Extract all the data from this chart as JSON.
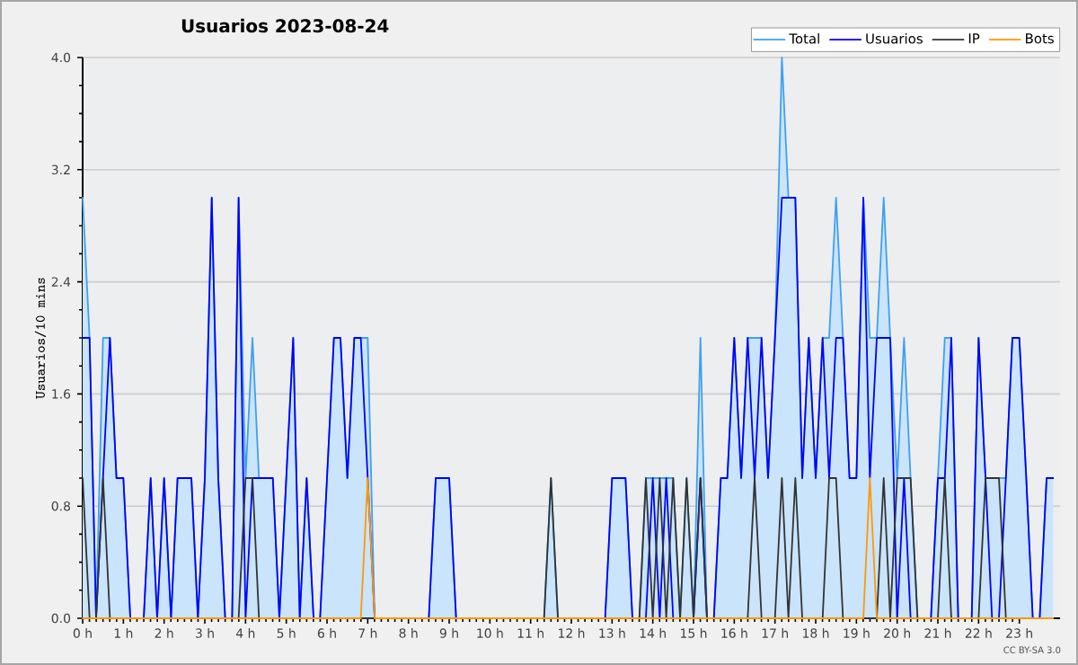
{
  "chart_data": {
    "type": "line",
    "title": "Usuarios  2023-08-24",
    "ylabel": "Usuarios/10 mins",
    "annotations": [
      "CC BY-SA 3.0"
    ],
    "x": [
      0,
      0.17,
      0.33,
      0.5,
      0.67,
      0.83,
      1,
      1.17,
      1.33,
      1.5,
      1.67,
      1.83,
      2,
      2.17,
      2.33,
      2.5,
      2.67,
      2.83,
      3,
      3.17,
      3.33,
      3.5,
      3.67,
      3.83,
      4,
      4.17,
      4.33,
      4.5,
      4.67,
      4.83,
      5,
      5.17,
      5.33,
      5.5,
      5.67,
      5.83,
      6,
      6.17,
      6.33,
      6.5,
      6.67,
      6.83,
      7,
      7.17,
      7.33,
      7.5,
      7.67,
      7.83,
      8,
      8.17,
      8.33,
      8.5,
      8.67,
      8.83,
      9,
      9.17,
      9.33,
      9.5,
      9.67,
      9.83,
      10,
      10.17,
      10.33,
      10.5,
      10.67,
      10.83,
      11,
      11.17,
      11.33,
      11.5,
      11.67,
      11.83,
      12,
      12.17,
      12.33,
      12.5,
      12.67,
      12.83,
      13,
      13.17,
      13.33,
      13.5,
      13.67,
      13.83,
      14,
      14.17,
      14.33,
      14.5,
      14.67,
      14.83,
      15,
      15.17,
      15.33,
      15.5,
      15.67,
      15.83,
      16,
      16.17,
      16.33,
      16.5,
      16.67,
      16.83,
      17,
      17.17,
      17.33,
      17.5,
      17.67,
      17.83,
      18,
      18.17,
      18.33,
      18.5,
      18.67,
      18.83,
      19,
      19.17,
      19.33,
      19.5,
      19.67,
      19.83,
      20,
      20.17,
      20.33,
      20.5,
      20.67,
      20.83,
      21,
      21.17,
      21.33,
      21.5,
      21.67,
      21.83,
      22,
      22.17,
      22.33,
      22.5,
      22.67,
      22.83,
      23,
      23.17,
      23.33,
      23.5,
      23.67,
      23.83
    ],
    "series": [
      {
        "name": "Total",
        "type": "area",
        "color": "#3fa0f0",
        "values": [
          3,
          2,
          0,
          2,
          2,
          1,
          1,
          0,
          0,
          0,
          1,
          0,
          1,
          0,
          1,
          1,
          1,
          0,
          1,
          3,
          1,
          0,
          0,
          3,
          1,
          2,
          1,
          1,
          1,
          0,
          1,
          2,
          0,
          1,
          0,
          0,
          1,
          2,
          2,
          1,
          2,
          2,
          2,
          0,
          0,
          0,
          0,
          0,
          0,
          0,
          0,
          0,
          1,
          1,
          1,
          0,
          0,
          0,
          0,
          0,
          0,
          0,
          0,
          0,
          0,
          0,
          0,
          0,
          0,
          1,
          0,
          0,
          0,
          0,
          0,
          0,
          0,
          0,
          1,
          1,
          1,
          0,
          0,
          1,
          1,
          1,
          1,
          1,
          0,
          1,
          0,
          2,
          0,
          0,
          1,
          1,
          2,
          1,
          2,
          2,
          2,
          1,
          2,
          4,
          3,
          3,
          1,
          2,
          1,
          2,
          2,
          3,
          2,
          1,
          1,
          3,
          2,
          2,
          3,
          2,
          1,
          2,
          1,
          0,
          0,
          0,
          1,
          2,
          2,
          0,
          0,
          0,
          2,
          1,
          1,
          1,
          1,
          2,
          2,
          1,
          0,
          0,
          1,
          1
        ]
      },
      {
        "name": "Usuarios",
        "color": "#0000ff",
        "values": [
          2,
          2,
          0,
          1,
          2,
          1,
          1,
          0,
          0,
          0,
          1,
          0,
          1,
          0,
          1,
          1,
          1,
          0,
          1,
          3,
          1,
          0,
          0,
          3,
          0,
          1,
          1,
          1,
          1,
          0,
          1,
          2,
          0,
          1,
          0,
          0,
          1,
          2,
          2,
          1,
          2,
          2,
          1,
          0,
          0,
          0,
          0,
          0,
          0,
          0,
          0,
          0,
          1,
          1,
          1,
          0,
          0,
          0,
          0,
          0,
          0,
          0,
          0,
          0,
          0,
          0,
          0,
          0,
          0,
          0,
          0,
          0,
          0,
          0,
          0,
          0,
          0,
          0,
          1,
          1,
          1,
          0,
          0,
          0,
          1,
          0,
          1,
          0,
          0,
          0,
          0,
          1,
          0,
          0,
          1,
          1,
          2,
          1,
          2,
          1,
          2,
          1,
          2,
          3,
          3,
          3,
          1,
          2,
          1,
          2,
          1,
          2,
          2,
          1,
          1,
          3,
          1,
          2,
          2,
          2,
          0,
          1,
          0,
          0,
          0,
          0,
          1,
          1,
          2,
          0,
          0,
          0,
          2,
          1,
          0,
          0,
          1,
          2,
          2,
          1,
          0,
          0,
          1,
          1
        ]
      },
      {
        "name": "IP",
        "color": "#333333",
        "values": [
          1,
          0,
          0,
          1,
          0,
          0,
          0,
          0,
          0,
          0,
          0,
          0,
          0,
          0,
          0,
          0,
          0,
          0,
          0,
          0,
          0,
          0,
          0,
          0,
          1,
          1,
          0,
          0,
          0,
          0,
          0,
          0,
          0,
          0,
          0,
          0,
          0,
          0,
          0,
          0,
          0,
          0,
          0,
          0,
          0,
          0,
          0,
          0,
          0,
          0,
          0,
          0,
          0,
          0,
          0,
          0,
          0,
          0,
          0,
          0,
          0,
          0,
          0,
          0,
          0,
          0,
          0,
          0,
          0,
          1,
          0,
          0,
          0,
          0,
          0,
          0,
          0,
          0,
          0,
          0,
          0,
          0,
          0,
          1,
          0,
          1,
          0,
          1,
          0,
          1,
          0,
          1,
          0,
          0,
          0,
          0,
          0,
          0,
          0,
          1,
          0,
          0,
          0,
          1,
          0,
          1,
          0,
          0,
          0,
          0,
          1,
          1,
          0,
          0,
          0,
          0,
          0,
          0,
          1,
          0,
          1,
          1,
          1,
          0,
          0,
          0,
          0,
          1,
          0,
          0,
          0,
          0,
          0,
          1,
          1,
          1,
          0,
          0,
          0,
          0,
          0,
          0,
          0,
          0
        ]
      },
      {
        "name": "Bots",
        "color": "#ff9900",
        "values": [
          0,
          0,
          0,
          0,
          0,
          0,
          0,
          0,
          0,
          0,
          0,
          0,
          0,
          0,
          0,
          0,
          0,
          0,
          0,
          0,
          0,
          0,
          0,
          0,
          0,
          0,
          0,
          0,
          0,
          0,
          0,
          0,
          0,
          0,
          0,
          0,
          0,
          0,
          0,
          0,
          0,
          0,
          1,
          0,
          0,
          0,
          0,
          0,
          0,
          0,
          0,
          0,
          0,
          0,
          0,
          0,
          0,
          0,
          0,
          0,
          0,
          0,
          0,
          0,
          0,
          0,
          0,
          0,
          0,
          0,
          0,
          0,
          0,
          0,
          0,
          0,
          0,
          0,
          0,
          0,
          0,
          0,
          0,
          0,
          0,
          0,
          0,
          0,
          0,
          0,
          0,
          0,
          0,
          0,
          0,
          0,
          0,
          0,
          0,
          0,
          0,
          0,
          0,
          0,
          0,
          0,
          0,
          0,
          0,
          0,
          0,
          0,
          0,
          0,
          0,
          0,
          1,
          0,
          0,
          0,
          0,
          0,
          0,
          0,
          0,
          0,
          0,
          0,
          0,
          0,
          0,
          0,
          0,
          0,
          0,
          0,
          0,
          0,
          0,
          0,
          0,
          0,
          0,
          0
        ]
      }
    ],
    "xlim": [
      0,
      24
    ],
    "xticks": [
      {
        "value": 0,
        "label": "0 h"
      },
      {
        "value": 1,
        "label": "1 h"
      },
      {
        "value": 2,
        "label": "2 h"
      },
      {
        "value": 3,
        "label": "3 h"
      },
      {
        "value": 4,
        "label": "4 h"
      },
      {
        "value": 5,
        "label": "5 h"
      },
      {
        "value": 6,
        "label": "6 h"
      },
      {
        "value": 7,
        "label": "7 h"
      },
      {
        "value": 8,
        "label": "8 h"
      },
      {
        "value": 9,
        "label": "9 h"
      },
      {
        "value": 10,
        "label": "10 h"
      },
      {
        "value": 11,
        "label": "11 h"
      },
      {
        "value": 12,
        "label": "12 h"
      },
      {
        "value": 13,
        "label": "13 h"
      },
      {
        "value": 14,
        "label": "14 h"
      },
      {
        "value": 15,
        "label": "15 h"
      },
      {
        "value": 16,
        "label": "16 h"
      },
      {
        "value": 17,
        "label": "17 h"
      },
      {
        "value": 18,
        "label": "18 h"
      },
      {
        "value": 19,
        "label": "19 h"
      },
      {
        "value": 20,
        "label": "20 h"
      },
      {
        "value": 21,
        "label": "21 h"
      },
      {
        "value": 22,
        "label": "22 h"
      },
      {
        "value": 23,
        "label": "23 h"
      }
    ],
    "ylim": [
      0,
      4
    ],
    "yticks": [
      {
        "value": 0,
        "label": "0.0"
      },
      0.8,
      1.6,
      2.4,
      3.2,
      {
        "value": 4,
        "label": "4.0"
      }
    ],
    "grid": "y",
    "legend": "top right"
  }
}
